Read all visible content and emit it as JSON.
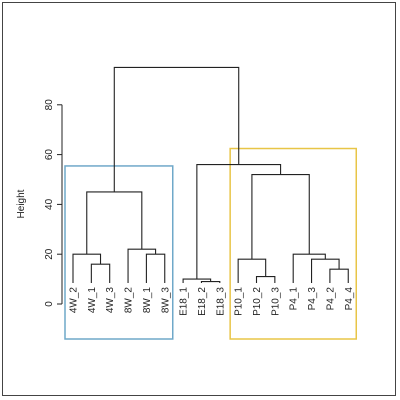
{
  "chart_data": {
    "type": "dendrogram",
    "ylabel": "Height",
    "ylim": [
      0,
      98
    ],
    "yticks": [
      0,
      20,
      40,
      60,
      80
    ],
    "leaves": [
      "4W_2",
      "4W_1",
      "4W_3",
      "8W_2",
      "8W_1",
      "8W_3",
      "E18_1",
      "E18_2",
      "E18_3",
      "P10_1",
      "P10_2",
      "P10_3",
      "P4_1",
      "P4_3",
      "P4_2",
      "P4_4"
    ],
    "merges": [
      {
        "a": "4W_1",
        "b": "4W_3",
        "height": 16
      },
      {
        "a": "4W_2",
        "b": "m0",
        "height": 20
      },
      {
        "a": "8W_1",
        "b": "8W_3",
        "height": 20
      },
      {
        "a": "8W_2",
        "b": "m2",
        "height": 22
      },
      {
        "a": "m1",
        "b": "m3",
        "height": 45
      },
      {
        "a": "E18_2",
        "b": "E18_3",
        "height": 9
      },
      {
        "a": "E18_1",
        "b": "m5",
        "height": 10
      },
      {
        "a": "P10_2",
        "b": "P10_3",
        "height": 11
      },
      {
        "a": "P10_1",
        "b": "m7",
        "height": 18
      },
      {
        "a": "P4_2",
        "b": "P4_4",
        "height": 14
      },
      {
        "a": "P4_3",
        "b": "m9",
        "height": 18
      },
      {
        "a": "P4_1",
        "b": "m10",
        "height": 20
      },
      {
        "a": "m8",
        "b": "m11",
        "height": 52
      },
      {
        "a": "m6",
        "b": "m12",
        "height": 56
      },
      {
        "a": "m4",
        "b": "m13",
        "height": 95
      }
    ],
    "groups": [
      {
        "members": [
          "4W_2",
          "4W_1",
          "4W_3",
          "8W_2",
          "8W_1",
          "8W_3"
        ],
        "color": "#6fa8c9"
      },
      {
        "members": [
          "P10_1",
          "P10_2",
          "P10_3",
          "P4_1",
          "P4_3",
          "P4_2",
          "P4_4"
        ],
        "color": "#e8c547"
      }
    ]
  }
}
